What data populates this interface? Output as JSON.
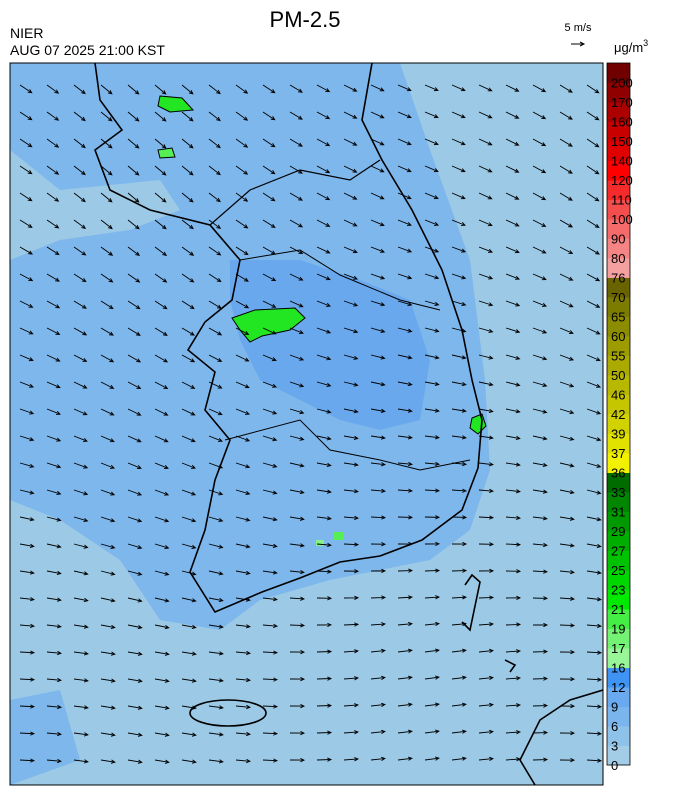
{
  "header": {
    "title": "PM-2.5",
    "source": "NIER",
    "datetime": "AUG 07 2025 21:00 KST"
  },
  "wind_legend": {
    "label": "5 m/s"
  },
  "colorbar": {
    "unit": "μg/m",
    "unit_sup": "3",
    "labels": [
      "0",
      "3",
      "6",
      "9",
      "12",
      "16",
      "17",
      "19",
      "21",
      "23",
      "25",
      "27",
      "29",
      "31",
      "33",
      "36",
      "37",
      "39",
      "42",
      "46",
      "50",
      "55",
      "60",
      "65",
      "70",
      "76",
      "80",
      "90",
      "100",
      "110",
      "120",
      "140",
      "150",
      "160",
      "170",
      "200"
    ],
    "colors": [
      "#a3cde6",
      "#8fc2e9",
      "#7bb5ed",
      "#68a9f0",
      "#3f94f3",
      "#98f598",
      "#74f274",
      "#44ee44",
      "#00ea00",
      "#00d600",
      "#00c200",
      "#00ae00",
      "#009a00",
      "#008600",
      "#006c00",
      "#f2f200",
      "#e2e200",
      "#d2d200",
      "#c6c600",
      "#b8b800",
      "#aaaa00",
      "#9c9c00",
      "#8c8c00",
      "#7c7c00",
      "#6a6400",
      "#f5a0a0",
      "#f58585",
      "#f56a6a",
      "#f44d4d",
      "#f52a2a",
      "#ff0000",
      "#e00000",
      "#c80000",
      "#ac0000",
      "#900000",
      "#700000"
    ]
  }
}
